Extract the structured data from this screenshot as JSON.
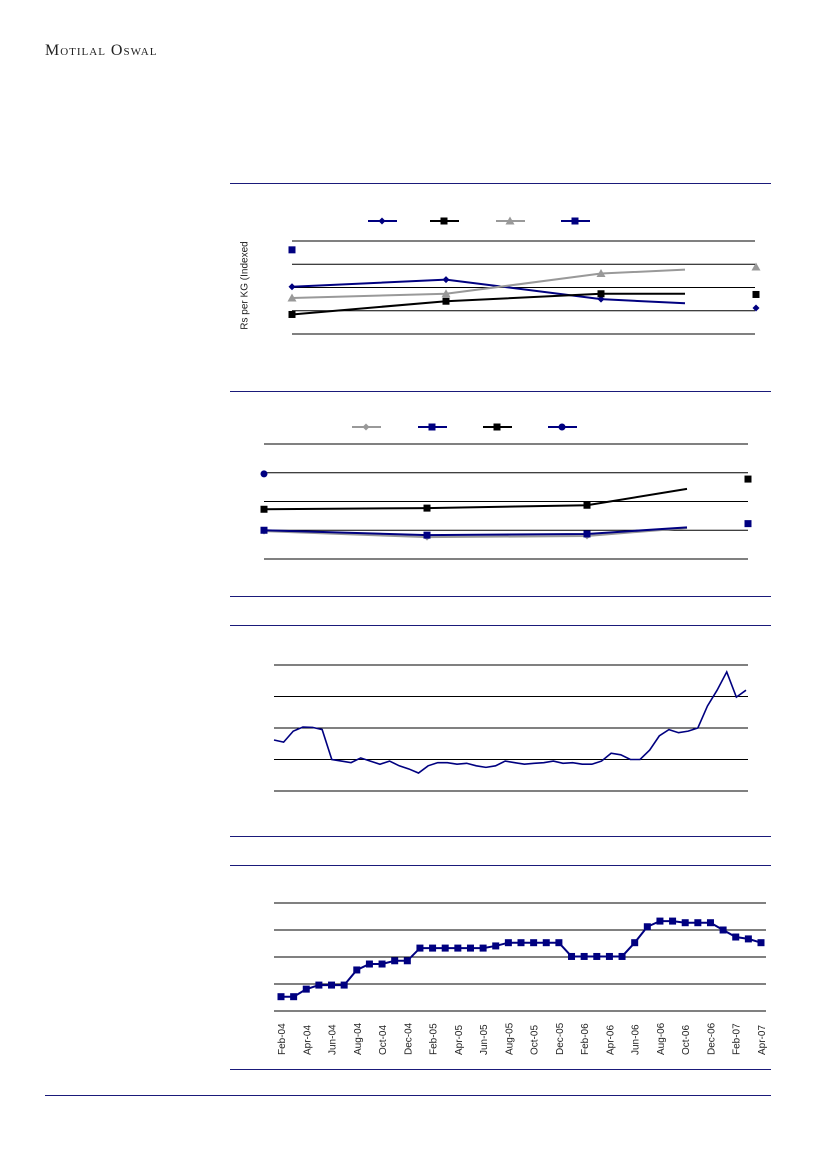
{
  "header": {
    "brand": "Motilal Oswal"
  },
  "colors": {
    "navy": "#000080",
    "black": "#000000",
    "gray": "#999999",
    "rule": "#1a1a7a"
  },
  "chart_data": [
    {
      "type": "line",
      "ylabel": "Rs per KG (Indexed",
      "ylim": [
        0,
        4
      ],
      "grid": true,
      "legend": "top",
      "series": [
        {
          "marker": "diamond",
          "color": "#000080",
          "values": [
            2.03,
            2.34,
            1.5,
            1.32
          ],
          "end_marker": 1.12
        },
        {
          "marker": "square",
          "color": "#000000",
          "values": [
            0.84,
            1.41,
            1.73,
            1.73
          ],
          "end_marker": 1.7
        },
        {
          "marker": "triangle",
          "color": "#999999",
          "values": [
            1.55,
            1.73,
            2.6,
            2.77
          ],
          "end_marker": 2.88
        },
        {
          "marker": "square",
          "color": "#000080",
          "values": [
            3.62
          ]
        }
      ]
    },
    {
      "type": "line",
      "ylim": [
        0,
        4
      ],
      "grid": true,
      "legend": "top",
      "series": [
        {
          "marker": "diamond",
          "color": "#999999",
          "values": [
            0.97,
            0.76,
            0.8,
            1.08
          ]
        },
        {
          "marker": "square",
          "color": "#000080",
          "values": [
            1.0,
            0.83,
            0.87,
            1.1
          ],
          "end_marker": 1.23
        },
        {
          "marker": "square",
          "color": "#000000",
          "values": [
            1.73,
            1.77,
            1.87,
            2.44
          ],
          "end_marker": 2.78
        },
        {
          "marker": "circle",
          "color": "#000080",
          "values": [
            2.96
          ]
        }
      ]
    },
    {
      "type": "line",
      "ylim": [
        0,
        4
      ],
      "grid": true,
      "series": [
        {
          "color": "#000080",
          "values": [
            1.62,
            1.55,
            1.9,
            2.03,
            2.02,
            1.95,
            1.0,
            0.95,
            0.9,
            1.05,
            0.95,
            0.85,
            0.95,
            0.8,
            0.7,
            0.57,
            0.8,
            0.9,
            0.9,
            0.85,
            0.88,
            0.8,
            0.75,
            0.8,
            0.95,
            0.9,
            0.85,
            0.88,
            0.9,
            0.95,
            0.88,
            0.9,
            0.85,
            0.85,
            0.95,
            1.2,
            1.15,
            1.0,
            1.0,
            1.3,
            1.75,
            1.95,
            1.85,
            1.9,
            2.0,
            2.7,
            3.2,
            3.78,
            2.98,
            3.2
          ]
        }
      ]
    },
    {
      "type": "line",
      "ylim": [
        0,
        4
      ],
      "grid": true,
      "tick_labels": [
        "Feb-04",
        "Apr-04",
        "Jun-04",
        "Aug-04",
        "Oct-04",
        "Dec-04",
        "Feb-05",
        "Apr-05",
        "Jun-05",
        "Aug-05",
        "Oct-05",
        "Dec-05",
        "Feb-06",
        "Apr-06",
        "Jun-06",
        "Aug-06",
        "Oct-06",
        "Dec-06",
        "Feb-07",
        "Apr-07"
      ],
      "series": [
        {
          "marker": "square",
          "color": "#000080",
          "values": [
            0.53,
            0.53,
            0.81,
            0.96,
            0.96,
            0.96,
            1.52,
            1.74,
            1.74,
            1.86,
            1.86,
            2.33,
            2.33,
            2.33,
            2.33,
            2.33,
            2.33,
            2.41,
            2.53,
            2.53,
            2.53,
            2.53,
            2.53,
            2.02,
            2.02,
            2.02,
            2.02,
            2.02,
            2.53,
            3.12,
            3.33,
            3.33,
            3.27,
            3.27,
            3.27,
            3.0,
            2.74,
            2.67,
            2.53
          ]
        }
      ]
    }
  ]
}
